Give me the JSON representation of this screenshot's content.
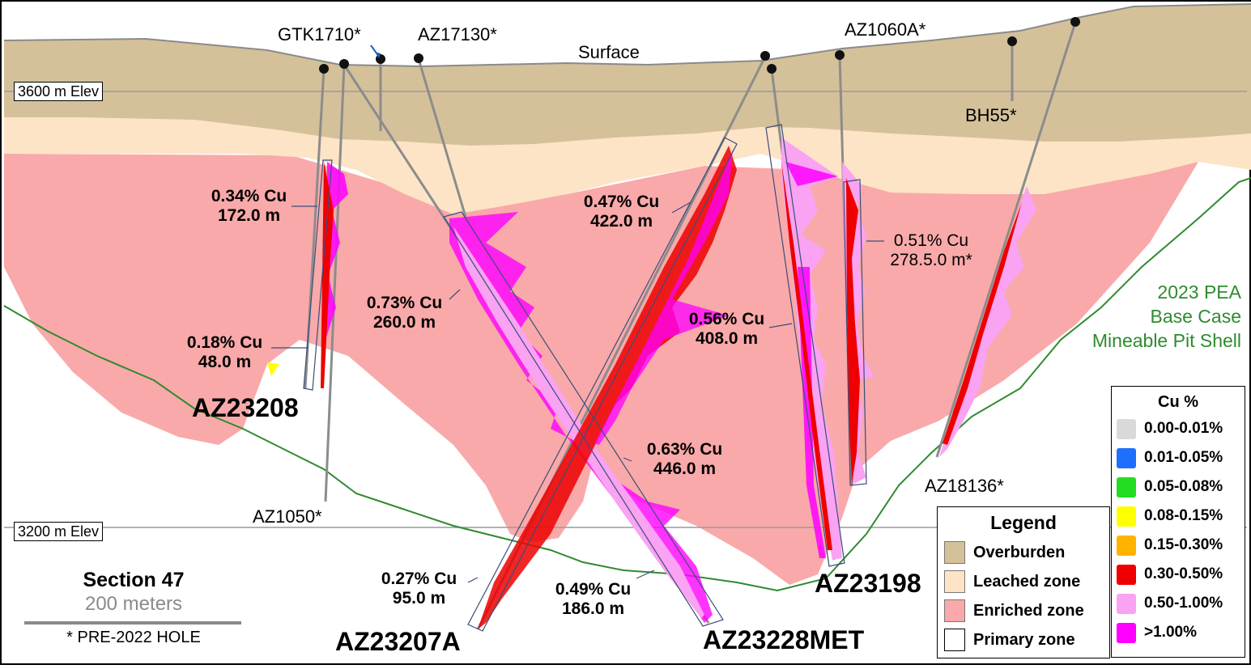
{
  "section": {
    "title": "Section 47",
    "scale_label": "200 meters",
    "note": "* PRE-2022 HOLE"
  },
  "surface_label": "Surface",
  "elevations": [
    {
      "label": "3600 m Elev"
    },
    {
      "label": "3200 m Elev"
    }
  ],
  "pit_shell": {
    "line1": "2023 PEA",
    "line2": "Base Case",
    "line3": "Mineable Pit Shell",
    "color": "#2e8b2e"
  },
  "holes": {
    "gtk1710": "GTK1710*",
    "az17130": "AZ17130*",
    "az1060a": "AZ1060A*",
    "bh55": "BH55*",
    "az1050": "AZ1050*",
    "az18136": "AZ18136*",
    "az23208": "AZ23208",
    "az23207a": "AZ23207A",
    "az23228met": "AZ23228MET",
    "az23198": "AZ23198"
  },
  "intervals": {
    "i1": {
      "grade": "0.34% Cu",
      "length": "172.0 m"
    },
    "i2": {
      "grade": "0.18% Cu",
      "length": "48.0 m"
    },
    "i3": {
      "grade": "0.73% Cu",
      "length": "260.0 m"
    },
    "i4": {
      "grade": "0.47% Cu",
      "length": "422.0 m"
    },
    "i5": {
      "grade": "0.56% Cu",
      "length": "408.0 m"
    },
    "i6": {
      "grade": "0.51% Cu",
      "length": "278.5.0 m*"
    },
    "i7": {
      "grade": "0.63% Cu",
      "length": "446.0 m"
    },
    "i8": {
      "grade": "0.27% Cu",
      "length": "95.0 m"
    },
    "i9": {
      "grade": "0.49% Cu",
      "length": "186.0 m"
    }
  },
  "legend": {
    "title": "Legend",
    "items": [
      {
        "label": "Overburden",
        "color": "#d4c19a"
      },
      {
        "label": "Leached zone",
        "color": "#fde4c6"
      },
      {
        "label": "Enriched zone",
        "color": "#f9a9a9"
      },
      {
        "label": "Primary zone",
        "color": "#ffffff"
      }
    ]
  },
  "cu_legend": {
    "title": "Cu %",
    "items": [
      {
        "label": "0.00-0.01%",
        "color": "#d9d9d9"
      },
      {
        "label": "0.01-0.05%",
        "color": "#1f6fff"
      },
      {
        "label": "0.05-0.08%",
        "color": "#22dd22"
      },
      {
        "label": "0.08-0.15%",
        "color": "#ffff00"
      },
      {
        "label": "0.15-0.30%",
        "color": "#ffb300"
      },
      {
        "label": "0.30-0.50%",
        "color": "#ee0000"
      },
      {
        "label": "0.50-1.00%",
        "color": "#f9a3f2"
      },
      {
        "label": ">1.00%",
        "color": "#ff00ff"
      }
    ]
  }
}
